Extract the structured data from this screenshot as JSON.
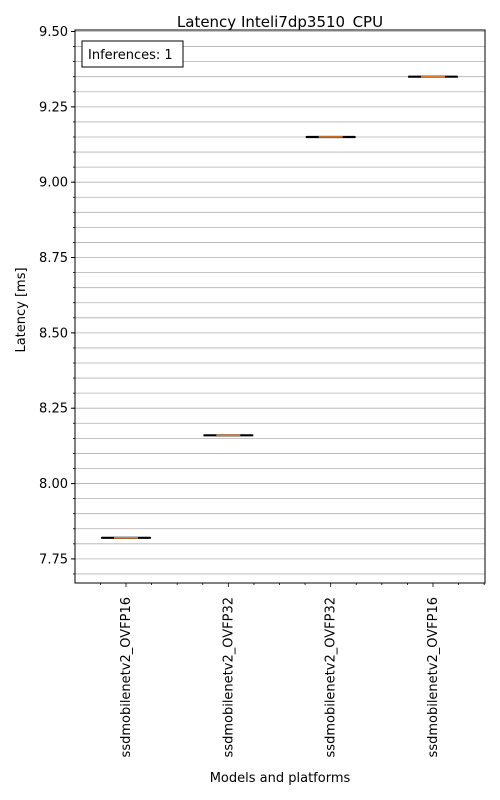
{
  "chart_data": {
    "type": "box",
    "title": "Latency Inteli7dp3510_CPU",
    "xlabel": "Models and platforms",
    "ylabel": "Latency [ms]",
    "ylim": [
      7.67,
      9.505
    ],
    "yticks": [
      "7.75",
      "8.00",
      "8.25",
      "8.50",
      "8.75",
      "9.00",
      "9.25",
      "9.50"
    ],
    "grid": "horizontal, major and minor",
    "annotation": "Inferences: 1",
    "annotation_position": "top-left",
    "categories": [
      "ssdmobilenetv2_OVFP16",
      "ssdmobilenetv2_OVFP32",
      "ssdmobilenetv2_OVFP32",
      "ssdmobilenetv2_OVFP16"
    ],
    "values": [
      7.82,
      8.16,
      9.15,
      9.35
    ],
    "colors": {
      "median": "#e07b2c",
      "whisker": "#000000",
      "grid": "#b0b0b0"
    }
  }
}
